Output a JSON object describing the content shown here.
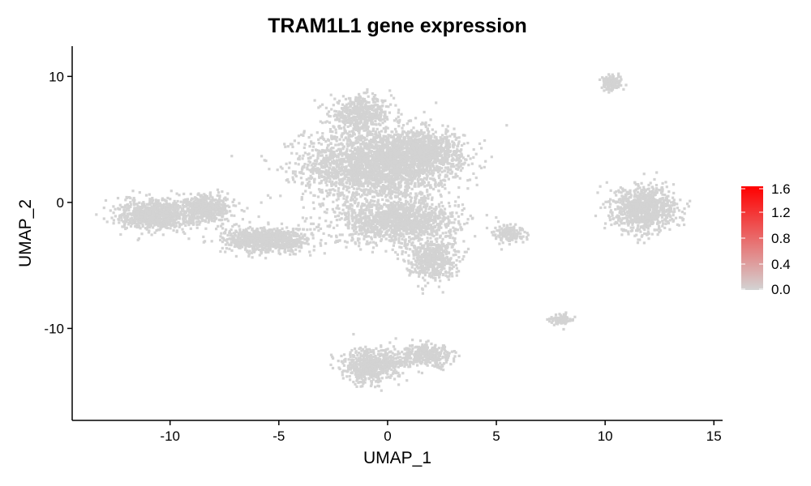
{
  "chart_data": {
    "type": "scatter",
    "title": "TRAM1L1 gene expression",
    "xlabel": "UMAP_1",
    "ylabel": "UMAP_2",
    "xlim": [
      -14.5,
      15.4
    ],
    "ylim": [
      -17.3,
      12.4
    ],
    "xticks": [
      -10,
      -5,
      0,
      5,
      10,
      15
    ],
    "yticks": [
      -10,
      0,
      10
    ],
    "point_color": "#d3d3d3",
    "grid": false,
    "legend": {
      "placement": "right",
      "type": "colorbar",
      "min": 0.0,
      "max": 1.6,
      "ticks": [
        "0.0",
        "0.4",
        "0.8",
        "1.2",
        "1.6"
      ],
      "color_low": "#d3d3d3",
      "color_high": "#ff0000"
    },
    "clusters": [
      {
        "name": "central-upper",
        "cx": -0.5,
        "cy": 3.0,
        "sx": 3.0,
        "sy": 2.6,
        "n": 2600
      },
      {
        "name": "central-top-lobe",
        "cx": -1.2,
        "cy": 7.0,
        "sx": 1.3,
        "sy": 1.2,
        "n": 500
      },
      {
        "name": "right-central",
        "cx": 1.8,
        "cy": 4.0,
        "sx": 1.5,
        "sy": 1.5,
        "n": 700
      },
      {
        "name": "central-middle",
        "cx": 0.5,
        "cy": -1.5,
        "sx": 2.5,
        "sy": 1.6,
        "n": 1300
      },
      {
        "name": "lower-right-tail",
        "cx": 2.0,
        "cy": -4.5,
        "sx": 1.0,
        "sy": 1.4,
        "n": 500
      },
      {
        "name": "left-arm",
        "cx": -5.5,
        "cy": -3.0,
        "sx": 1.8,
        "sy": 0.9,
        "n": 800
      },
      {
        "name": "far-left-1",
        "cx": -10.7,
        "cy": -1.0,
        "sx": 1.5,
        "sy": 1.1,
        "n": 800
      },
      {
        "name": "far-left-2",
        "cx": -8.3,
        "cy": -0.5,
        "sx": 1.1,
        "sy": 1.0,
        "n": 500
      },
      {
        "name": "bottom-cluster",
        "cx": -0.8,
        "cy": -13.0,
        "sx": 1.2,
        "sy": 1.2,
        "n": 600
      },
      {
        "name": "bottom-tail",
        "cx": 1.8,
        "cy": -12.2,
        "sx": 1.2,
        "sy": 0.8,
        "n": 350
      },
      {
        "name": "right-cluster",
        "cx": 11.8,
        "cy": -0.5,
        "sx": 1.3,
        "sy": 1.6,
        "n": 900
      },
      {
        "name": "top-right-small",
        "cx": 10.3,
        "cy": 9.5,
        "sx": 0.4,
        "sy": 0.5,
        "n": 150
      },
      {
        "name": "mid-right",
        "cx": 5.6,
        "cy": -2.5,
        "sx": 0.6,
        "sy": 0.6,
        "n": 160
      },
      {
        "name": "lower-right-small",
        "cx": 8.0,
        "cy": -9.3,
        "sx": 0.4,
        "sy": 0.35,
        "n": 110
      }
    ]
  }
}
